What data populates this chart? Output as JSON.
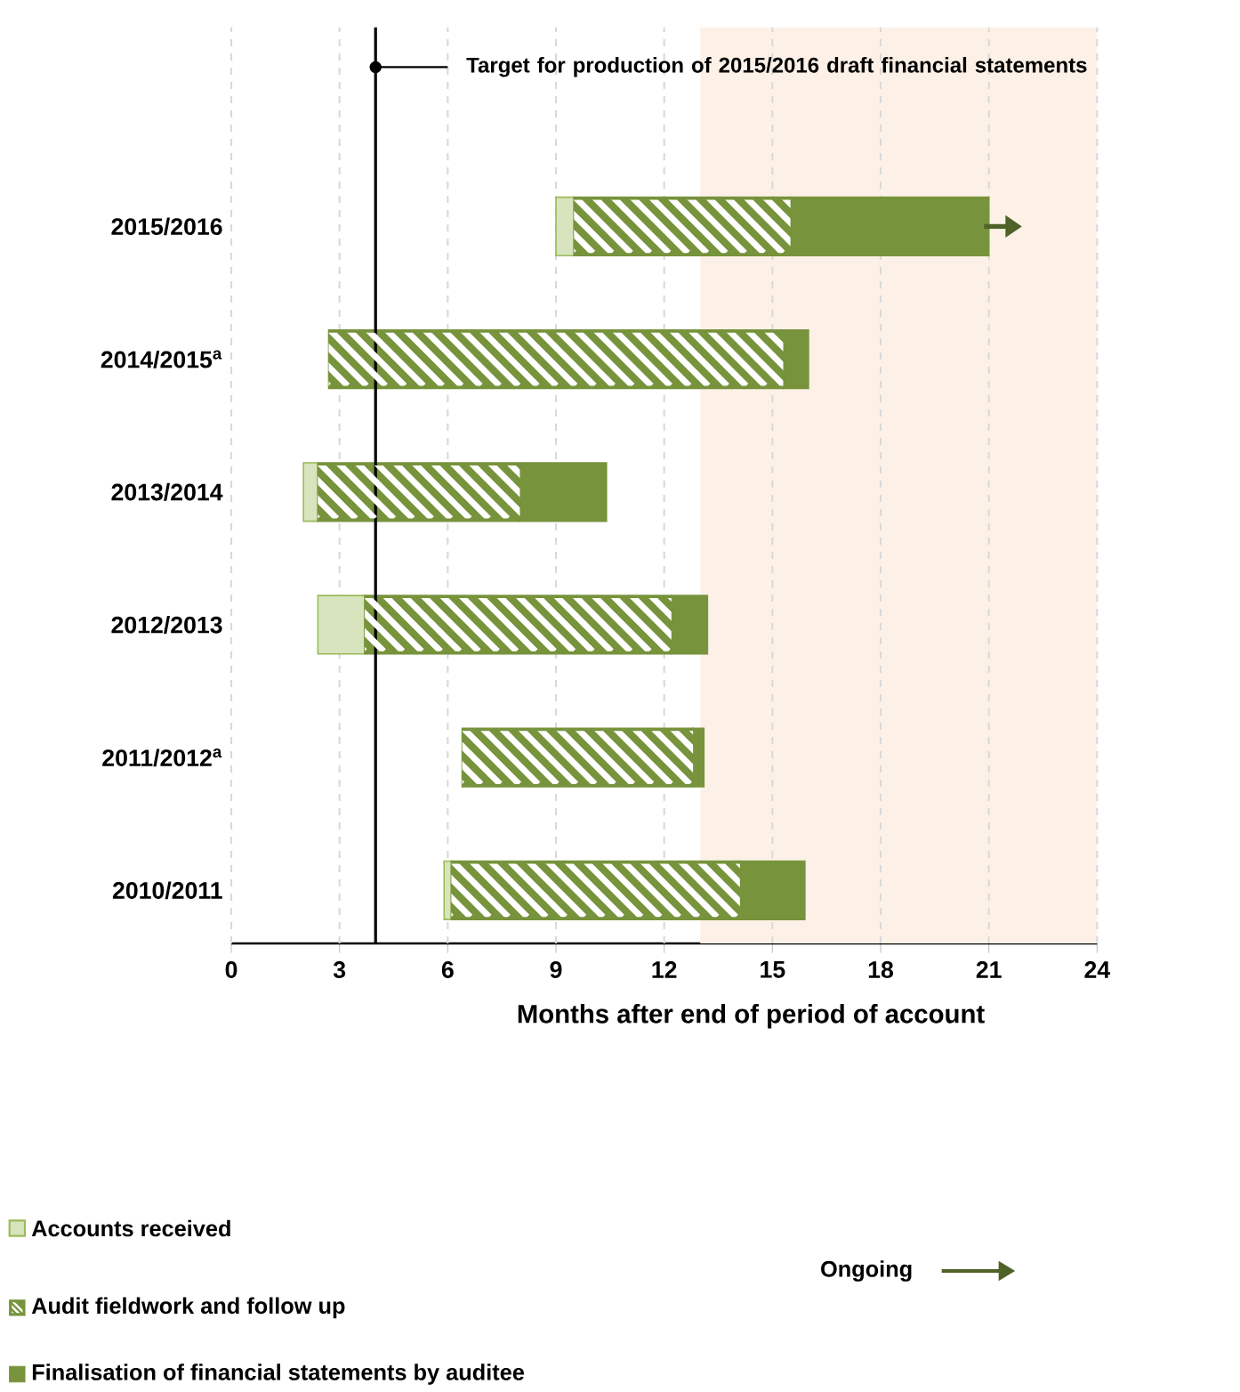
{
  "chart_data": {
    "type": "bar",
    "orientation": "horizontal",
    "categories": [
      "2015/2016",
      "2014/2015$^{a}$",
      "2013/2014",
      "2012/2013",
      "2011/2012$^{a}$",
      "2010/2011"
    ],
    "series": [
      {
        "name": "Accounts received",
        "color": "#d7e4bd",
        "base": [
          9.0,
          null,
          2.0,
          2.4,
          null,
          5.9
        ],
        "values": [
          0.5,
          null,
          0.4,
          1.3,
          null,
          0.2
        ]
      },
      {
        "name": "Audit fieldwork and follow up",
        "color": "#77933c",
        "base": [
          9.5,
          2.7,
          2.4,
          3.7,
          6.4,
          6.1
        ],
        "values": [
          6.0,
          12.6,
          5.6,
          8.5,
          6.4,
          8.0
        ]
      },
      {
        "name": "Finalisation of financial statements by auditee",
        "color": "#77933c",
        "base": [
          15.5,
          15.3,
          8.0,
          12.2,
          12.8,
          14.1
        ],
        "values": [
          5.5,
          0.7,
          2.4,
          1.0,
          0.3,
          1.8
        ]
      }
    ],
    "xlabel": "Months after end of period of account",
    "xlim": [
      0,
      24
    ],
    "xticks": [
      0,
      3,
      6,
      9,
      12,
      15,
      18,
      21,
      24
    ],
    "grid": "x",
    "legend": "bottom",
    "ref_lines": [
      {
        "axis": "x",
        "value": 4,
        "label": "Target for production of 2015/2016 draft financial statements",
        "color": "#000000",
        "line_style": "solid"
      }
    ],
    "bands": [
      {
        "axis": "x",
        "from": 13,
        "to": 24,
        "color": "#fdf1e7"
      }
    ],
    "annotations": [
      "Ongoing"
    ]
  }
}
